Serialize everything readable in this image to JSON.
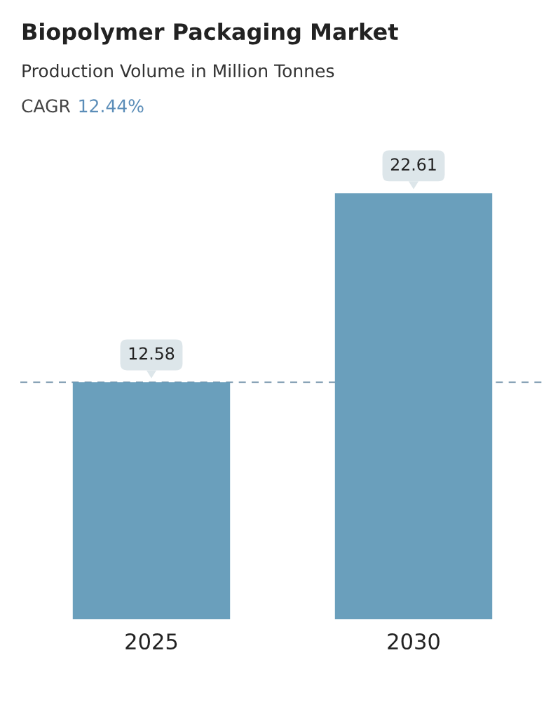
{
  "chart_data": {
    "type": "bar",
    "title": "Biopolymer Packaging Market",
    "subtitle": "Production Volume in Million Tonnes",
    "annotations": [
      "CAGR 12.44%"
    ],
    "categories": [
      "2025",
      "2030"
    ],
    "values": [
      12.58,
      22.61
    ],
    "color": "#6a9fbc",
    "data_labels": true,
    "ref_lines": [
      {
        "axis": "y",
        "value": 12.58,
        "label": null,
        "color": "#6b8ba4",
        "line_style": "dashed"
      }
    ],
    "grid": false,
    "legend": false
  }
}
